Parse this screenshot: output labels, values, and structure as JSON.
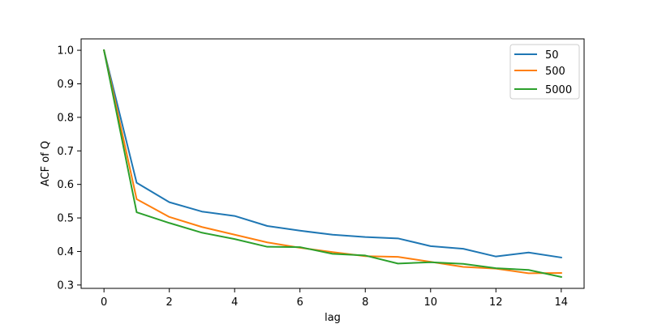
{
  "chart_data": {
    "type": "line",
    "title": "",
    "xlabel": "lag",
    "ylabel": "ACF of Q",
    "x": [
      0,
      1,
      2,
      3,
      4,
      5,
      6,
      7,
      8,
      9,
      10,
      11,
      12,
      13,
      14
    ],
    "xlim": [
      -0.7,
      14.7
    ],
    "ylim": [
      0.29,
      1.034
    ],
    "xticks": [
      0,
      2,
      4,
      6,
      8,
      10,
      12,
      14
    ],
    "yticks": [
      0.3,
      0.4,
      0.5,
      0.6,
      0.7,
      0.8,
      0.9,
      1.0
    ],
    "xtick_labels": [
      "0",
      "2",
      "4",
      "6",
      "8",
      "10",
      "12",
      "14"
    ],
    "ytick_labels": [
      "0.3",
      "0.4",
      "0.5",
      "0.6",
      "0.7",
      "0.8",
      "0.9",
      "1.0"
    ],
    "grid": false,
    "legend": {
      "placement": "top-right",
      "entries": [
        "50",
        "500",
        "5000"
      ]
    },
    "series": [
      {
        "name": "50",
        "color": "#1f77b4",
        "values": [
          1.0,
          0.605,
          0.547,
          0.519,
          0.506,
          0.476,
          0.462,
          0.45,
          0.443,
          0.439,
          0.416,
          0.408,
          0.385,
          0.397,
          0.382
        ]
      },
      {
        "name": "500",
        "color": "#ff7f0e",
        "values": [
          1.0,
          0.556,
          0.503,
          0.473,
          0.45,
          0.427,
          0.411,
          0.398,
          0.386,
          0.384,
          0.369,
          0.354,
          0.349,
          0.335,
          0.336
        ]
      },
      {
        "name": "5000",
        "color": "#2ca02c",
        "values": [
          1.0,
          0.517,
          0.485,
          0.456,
          0.437,
          0.414,
          0.413,
          0.393,
          0.388,
          0.364,
          0.368,
          0.363,
          0.35,
          0.345,
          0.324
        ]
      }
    ]
  }
}
